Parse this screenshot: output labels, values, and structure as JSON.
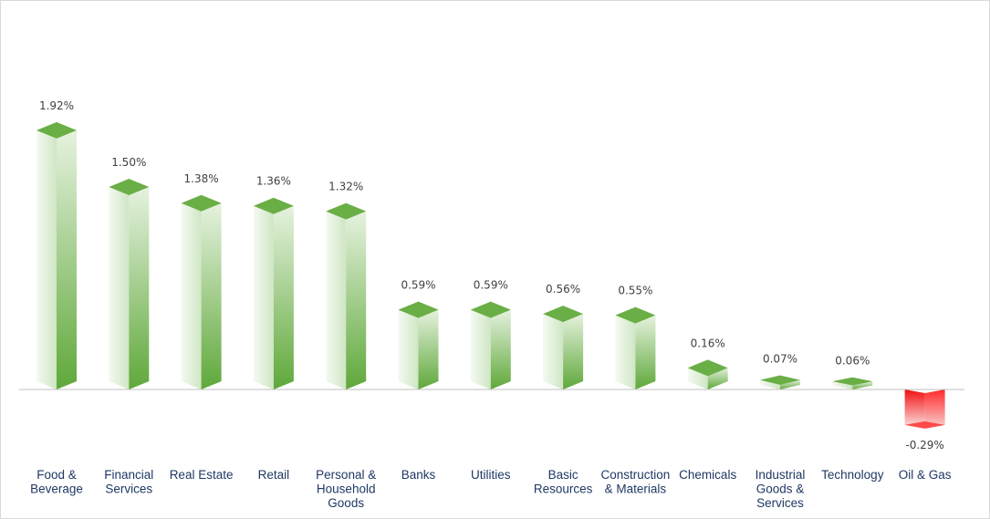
{
  "chart_data": {
    "type": "bar",
    "title": "",
    "xlabel": "",
    "ylabel": "",
    "ylim": [
      -0.29,
      1.92
    ],
    "grid": false,
    "legend": "none",
    "categories": [
      "Food & Beverage",
      "Financial Services",
      "Real Estate",
      "Retail",
      "Personal & Household Goods",
      "Banks",
      "Utilities",
      "Basic Resources",
      "Construction & Materials",
      "Chemicals",
      "Industrial Goods & Services",
      "Technology",
      "Oil & Gas"
    ],
    "category_lines": [
      [
        "Food &",
        "Beverage"
      ],
      [
        "Financial",
        "Services"
      ],
      [
        "Real Estate"
      ],
      [
        "Retail"
      ],
      [
        "Personal &",
        "Household",
        "Goods"
      ],
      [
        "Banks"
      ],
      [
        "Utilities"
      ],
      [
        "Basic",
        "Resources"
      ],
      [
        "Construction",
        "& Materials"
      ],
      [
        "Chemicals"
      ],
      [
        "Industrial",
        "Goods &",
        "Services"
      ],
      [
        "Technology"
      ],
      [
        "Oil & Gas"
      ]
    ],
    "values": [
      1.92,
      1.5,
      1.38,
      1.36,
      1.32,
      0.59,
      0.59,
      0.56,
      0.55,
      0.16,
      0.07,
      0.06,
      -0.29
    ],
    "labels": [
      "1.92%",
      "1.50%",
      "1.38%",
      "1.36%",
      "1.32%",
      "0.59%",
      "0.59%",
      "0.56%",
      "0.55%",
      "0.16%",
      "0.07%",
      "0.06%",
      "-0.29%"
    ],
    "colors": {
      "positive_dark": "#5fa83a",
      "positive_light": "#ecf6e8",
      "positive_top": "#6aae46",
      "negative_dark": "#f00000",
      "negative_light": "#fbe1e1",
      "negative_top": "#ff4a4a",
      "axis": "#bfbfbf",
      "label_text": "#404040",
      "category_text": "#1f3864"
    }
  }
}
